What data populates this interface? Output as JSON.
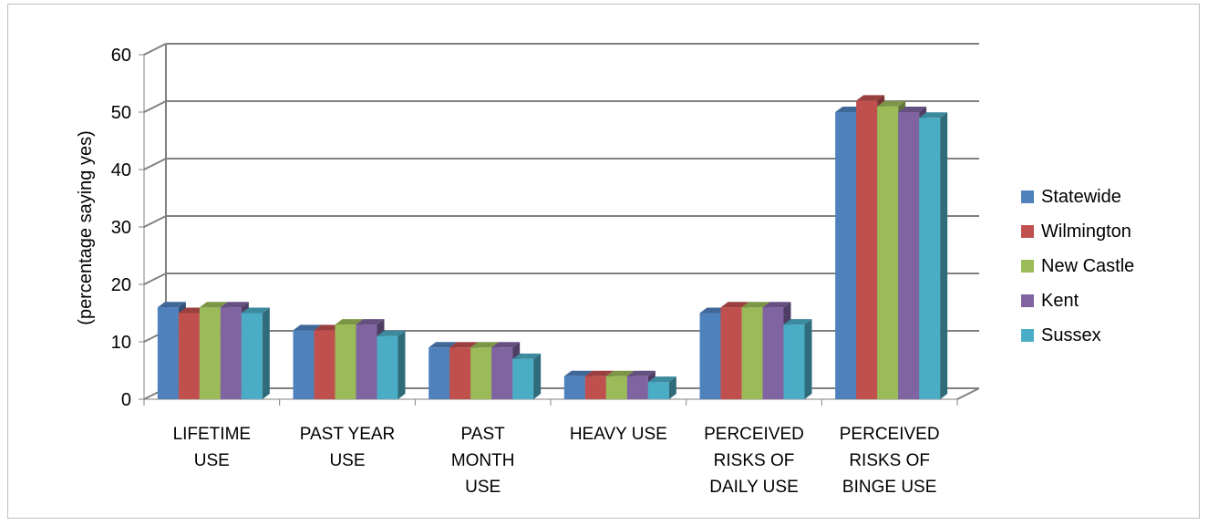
{
  "chart_data": {
    "type": "bar",
    "title": "",
    "xlabel": "",
    "ylabel": "(percentage saying yes)",
    "ylim": [
      0,
      60
    ],
    "yticks": [
      0,
      10,
      20,
      30,
      40,
      50,
      60
    ],
    "grid": true,
    "legend_position": "right",
    "categories": [
      [
        "LIFETIME",
        "USE"
      ],
      [
        "PAST YEAR",
        "USE"
      ],
      [
        "PAST",
        "MONTH",
        "USE"
      ],
      [
        "HEAVY USE"
      ],
      [
        "PERCEIVED",
        "RISKS OF",
        "DAILY USE"
      ],
      [
        "PERCEIVED",
        "RISKS OF",
        "BINGE USE"
      ]
    ],
    "series": [
      {
        "name": "Statewide",
        "color": "#4F81BD",
        "values": [
          16,
          12,
          9,
          4,
          15,
          50
        ]
      },
      {
        "name": "Wilmington",
        "color": "#C0504D",
        "values": [
          15,
          12,
          9,
          4,
          16,
          52
        ]
      },
      {
        "name": "New Castle",
        "color": "#9BBB59",
        "values": [
          16,
          13,
          9,
          4,
          16,
          51
        ]
      },
      {
        "name": "Kent",
        "color": "#8064A2",
        "values": [
          16,
          13,
          9,
          4,
          16,
          50
        ]
      },
      {
        "name": "Sussex",
        "color": "#4BACC6",
        "values": [
          15,
          11,
          7,
          3,
          13,
          49
        ]
      }
    ]
  }
}
